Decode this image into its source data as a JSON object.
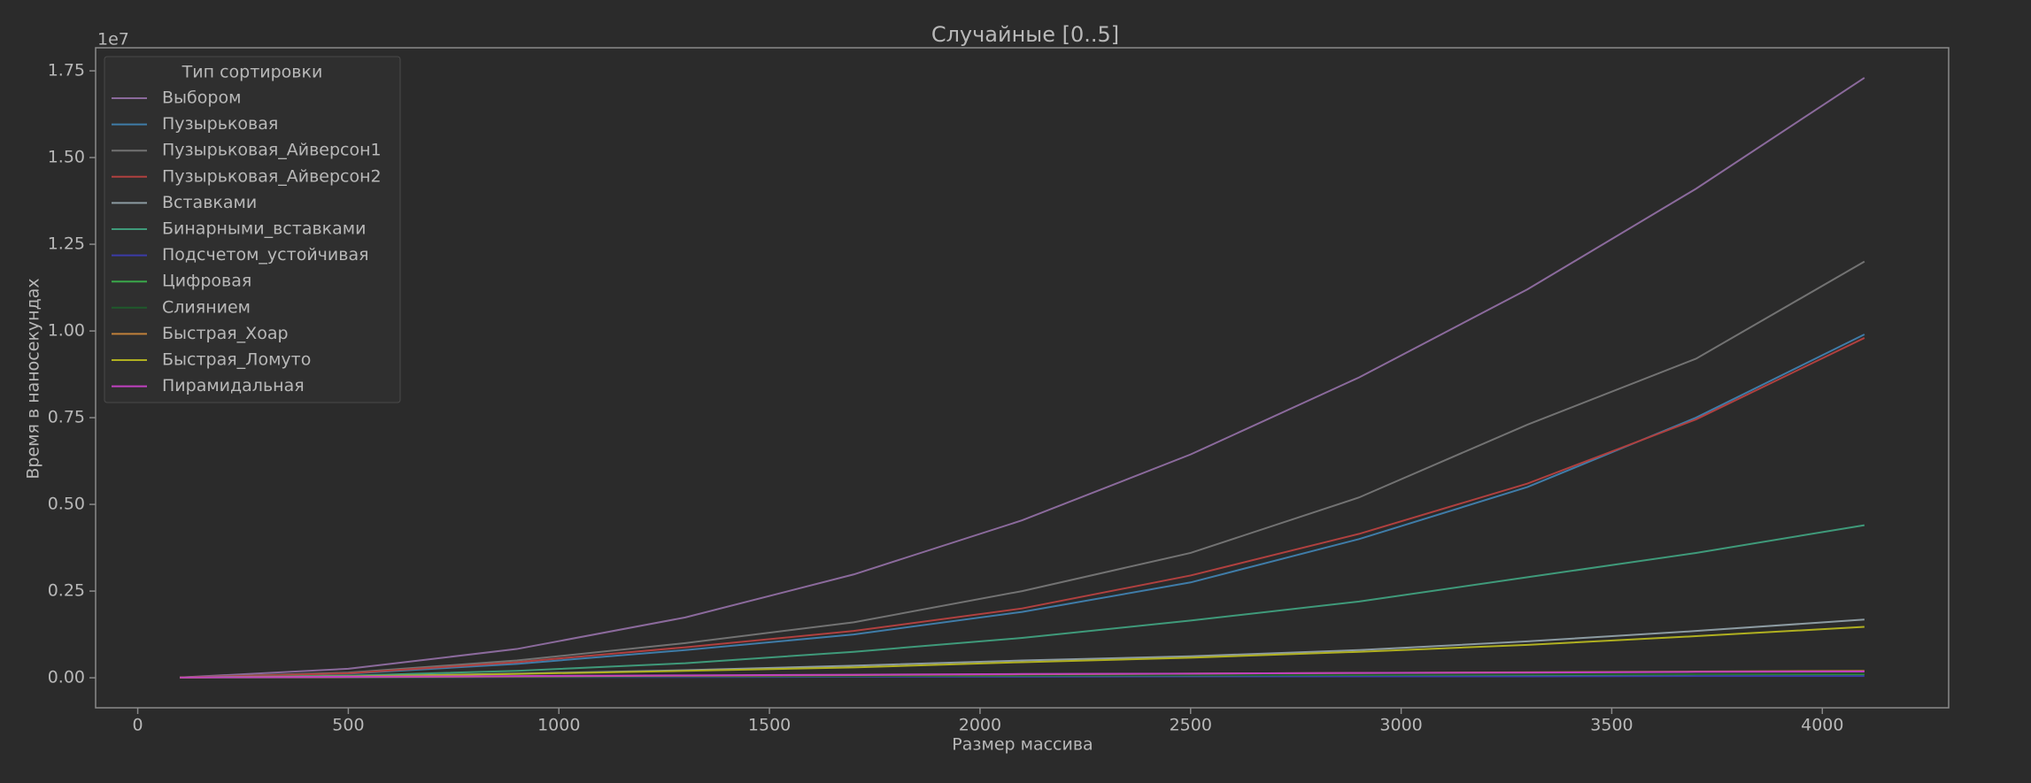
{
  "chart_data": {
    "type": "line",
    "title": "Случайные [0..5]",
    "x_label": "Размер массива",
    "y_label": "Время в наносекундах",
    "y_offset_label": "1e7",
    "legend_title": "Тип сортировки",
    "legend": "upper left",
    "x": [
      100,
      500,
      900,
      1300,
      1700,
      2100,
      2500,
      2900,
      3300,
      3700,
      4100
    ],
    "series": [
      {
        "name": "Выбором",
        "color": "#8b6a9c",
        "values": [
          0.001,
          0.026,
          0.083,
          0.174,
          0.298,
          0.454,
          0.644,
          0.866,
          1.12,
          1.41,
          1.73
        ]
      },
      {
        "name": "Пузырьковая",
        "color": "#3f7ca8",
        "values": [
          0.001,
          0.012,
          0.04,
          0.08,
          0.125,
          0.19,
          0.275,
          0.4,
          0.55,
          0.75,
          0.99
        ]
      },
      {
        "name": "Пузырьковая_Айверсон1",
        "color": "#727272",
        "values": [
          0.001,
          0.015,
          0.05,
          0.1,
          0.16,
          0.25,
          0.36,
          0.52,
          0.73,
          0.92,
          1.2
        ]
      },
      {
        "name": "Пузырьковая_Айверсон2",
        "color": "#b0403f",
        "values": [
          0.001,
          0.013,
          0.045,
          0.088,
          0.135,
          0.2,
          0.295,
          0.415,
          0.56,
          0.745,
          0.98
        ]
      },
      {
        "name": "Вставками",
        "color": "#8c9ba2",
        "values": [
          0.001,
          0.004,
          0.012,
          0.022,
          0.035,
          0.05,
          0.062,
          0.08,
          0.105,
          0.135,
          0.168
        ]
      },
      {
        "name": "Бинарными_вставками",
        "color": "#3f9a7a",
        "values": [
          0.001,
          0.006,
          0.02,
          0.042,
          0.075,
          0.115,
          0.165,
          0.22,
          0.29,
          0.36,
          0.44
        ]
      },
      {
        "name": "Подсчетом_устойчивая",
        "color": "#3b3ba8",
        "values": [
          0.001,
          0.001,
          0.002,
          0.002,
          0.003,
          0.003,
          0.004,
          0.004,
          0.004,
          0.005,
          0.005
        ]
      },
      {
        "name": "Цифровая",
        "color": "#3aa84a",
        "values": [
          0.001,
          0.002,
          0.003,
          0.004,
          0.005,
          0.006,
          0.007,
          0.008,
          0.009,
          0.01,
          0.01
        ]
      },
      {
        "name": "Слиянием",
        "color": "#1f5a2b",
        "values": [
          0.001,
          0.002,
          0.003,
          0.004,
          0.005,
          0.007,
          0.008,
          0.009,
          0.01,
          0.011,
          0.012
        ]
      },
      {
        "name": "Быстрая_Хоар",
        "color": "#c0803a",
        "values": [
          0.001,
          0.002,
          0.004,
          0.006,
          0.008,
          0.01,
          0.012,
          0.014,
          0.016,
          0.018,
          0.02
        ]
      },
      {
        "name": "Быстрая_Ломуто",
        "color": "#b0b020",
        "values": [
          0.001,
          0.004,
          0.011,
          0.02,
          0.03,
          0.045,
          0.058,
          0.075,
          0.095,
          0.12,
          0.147
        ]
      },
      {
        "name": "Пирамидальная",
        "color": "#c040c0",
        "values": [
          0.001,
          0.003,
          0.005,
          0.007,
          0.009,
          0.011,
          0.012,
          0.014,
          0.015,
          0.017,
          0.018
        ]
      }
    ],
    "xlim": [
      -100,
      4300
    ],
    "xticks": [
      0,
      500,
      1000,
      1500,
      2000,
      2500,
      3000,
      3500,
      4000
    ],
    "ylim": [
      -0.0865,
      1.8165
    ],
    "yticks": [
      {
        "value": 0,
        "label": "0.00"
      },
      0.25,
      {
        "value": 0.5,
        "label": "0.50"
      },
      0.75,
      {
        "value": 1,
        "label": "1.00"
      },
      1.25,
      {
        "value": 1.5,
        "label": "1.50"
      },
      1.75
    ]
  }
}
